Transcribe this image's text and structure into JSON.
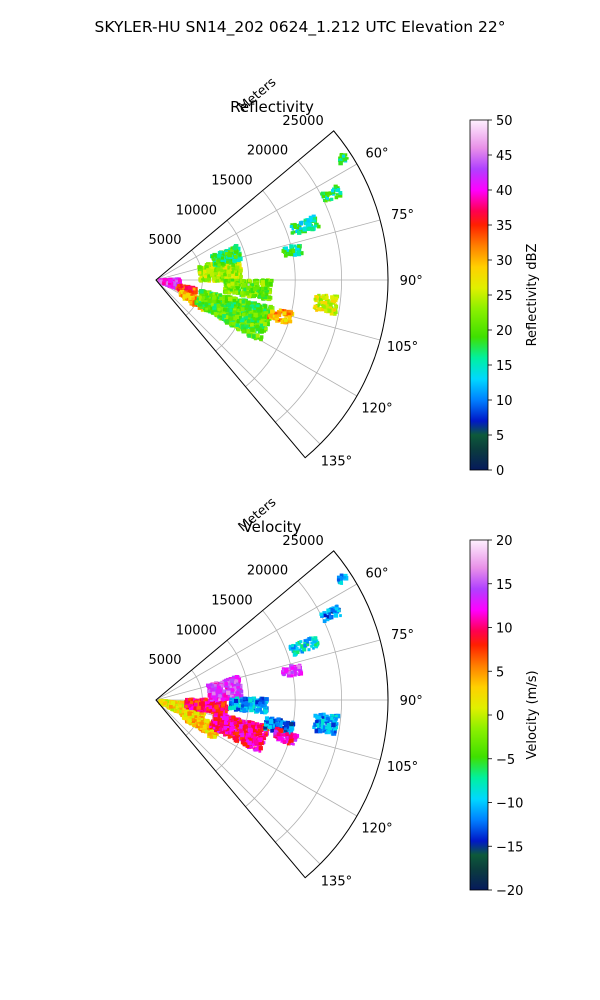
{
  "figure": {
    "suptitle": "SKYLER-HU  SN14_202  0624_1.212 UTC Elevation 22°"
  },
  "chart_data": [
    {
      "type": "heatmap",
      "subtype": "polar-sector (radar PPI)",
      "title": "Reflectivity",
      "radial_axis_label": "Meters",
      "radial_range": [
        0,
        25000
      ],
      "radial_ticks": [
        5000,
        10000,
        15000,
        20000,
        25000
      ],
      "radial_tick_labels": [
        "5000",
        "10000",
        "15000",
        "20000",
        "25000"
      ],
      "angle_range_deg": [
        50,
        140
      ],
      "angle_ticks_deg": [
        60,
        75,
        90,
        105,
        120,
        135
      ],
      "angle_tick_labels": [
        "60°",
        "75°",
        "90°",
        "105°",
        "120°",
        "135°"
      ],
      "grid": true,
      "colorbar": {
        "label": "Reflectivity dBZ",
        "range": [
          0,
          50
        ],
        "ticks": [
          0,
          5,
          10,
          15,
          20,
          25,
          30,
          35,
          40,
          45,
          50
        ],
        "tick_labels": [
          "0",
          "5",
          "10",
          "15",
          "20",
          "25",
          "30",
          "35",
          "40",
          "45",
          "50"
        ]
      },
      "echoes": [
        {
          "az": 101,
          "r": 1500,
          "dr": 2200,
          "daz": 26,
          "v": 42
        },
        {
          "az": 108,
          "r": 3500,
          "dr": 2000,
          "daz": 12,
          "v": 34
        },
        {
          "az": 118,
          "r": 4500,
          "dr": 3000,
          "daz": 10,
          "v": 30
        },
        {
          "az": 112,
          "r": 9000,
          "dr": 8000,
          "daz": 18,
          "v": 20
        },
        {
          "az": 82,
          "r": 7000,
          "dr": 4500,
          "daz": 18,
          "v": 24
        },
        {
          "az": 72,
          "r": 8000,
          "dr": 3000,
          "daz": 10,
          "v": 18
        },
        {
          "az": 95,
          "r": 10000,
          "dr": 5000,
          "daz": 10,
          "v": 21
        },
        {
          "az": 106,
          "r": 14000,
          "dr": 2500,
          "daz": 5,
          "v": 30
        },
        {
          "az": 98,
          "r": 18500,
          "dr": 2500,
          "daz": 6,
          "v": 26
        },
        {
          "az": 78,
          "r": 15000,
          "dr": 2000,
          "daz": 4,
          "v": 17
        },
        {
          "az": 70,
          "r": 17000,
          "dr": 3000,
          "daz": 4,
          "v": 16
        },
        {
          "az": 64,
          "r": 21000,
          "dr": 2000,
          "daz": 3,
          "v": 17
        },
        {
          "az": 57,
          "r": 24000,
          "dr": 1000,
          "daz": 2,
          "v": 17
        }
      ]
    },
    {
      "type": "heatmap",
      "subtype": "polar-sector (radar PPI)",
      "title": "Velocity",
      "radial_axis_label": "Meters",
      "radial_range": [
        0,
        25000
      ],
      "radial_ticks": [
        5000,
        10000,
        15000,
        20000,
        25000
      ],
      "radial_tick_labels": [
        "5000",
        "10000",
        "15000",
        "20000",
        "25000"
      ],
      "angle_range_deg": [
        50,
        140
      ],
      "angle_ticks_deg": [
        60,
        75,
        90,
        105,
        120,
        135
      ],
      "angle_tick_labels": [
        "60°",
        "75°",
        "90°",
        "105°",
        "120°",
        "135°"
      ],
      "grid": true,
      "colorbar": {
        "label": "Velocity (m/s)",
        "range": [
          -20,
          20
        ],
        "ticks": [
          -20,
          -15,
          -10,
          -5,
          0,
          5,
          10,
          15,
          20
        ],
        "tick_labels": [
          "−20",
          "−15",
          "−10",
          "−5",
          "0",
          "5",
          "10",
          "15",
          "20"
        ]
      },
      "echoes": [
        {
          "az": 108,
          "r": 3000,
          "dr": 5000,
          "daz": 24,
          "v": 2
        },
        {
          "az": 118,
          "r": 5500,
          "dr": 4000,
          "daz": 12,
          "v": 3
        },
        {
          "az": 96,
          "r": 5500,
          "dr": 4500,
          "daz": 14,
          "v": 9
        },
        {
          "az": 110,
          "r": 9500,
          "dr": 6000,
          "daz": 14,
          "v": 10
        },
        {
          "az": 82,
          "r": 7500,
          "dr": 3500,
          "daz": 16,
          "v": 14
        },
        {
          "az": 93,
          "r": 10000,
          "dr": 4000,
          "daz": 8,
          "v": -11
        },
        {
          "az": 102,
          "r": 13500,
          "dr": 3000,
          "daz": 6,
          "v": -12
        },
        {
          "az": 106,
          "r": 14500,
          "dr": 2500,
          "daz": 5,
          "v": 11
        },
        {
          "az": 98,
          "r": 18500,
          "dr": 2500,
          "daz": 6,
          "v": -11
        },
        {
          "az": 78,
          "r": 15000,
          "dr": 2000,
          "daz": 4,
          "v": 14
        },
        {
          "az": 70,
          "r": 17000,
          "dr": 3000,
          "daz": 4,
          "v": -9
        },
        {
          "az": 64,
          "r": 21000,
          "dr": 2000,
          "daz": 3,
          "v": -12
        },
        {
          "az": 57,
          "r": 24000,
          "dr": 1000,
          "daz": 2,
          "v": -11
        }
      ]
    }
  ]
}
